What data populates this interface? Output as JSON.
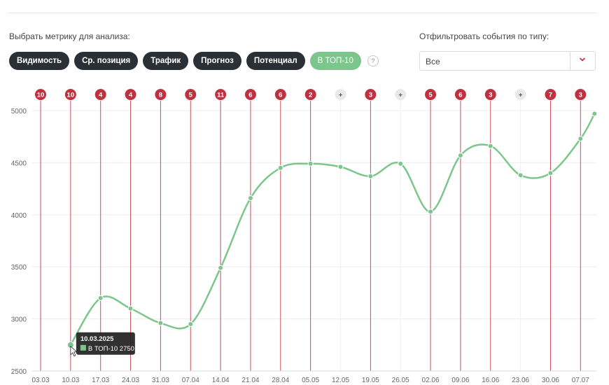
{
  "metrics": {
    "label": "Выбрать метрику для анализа:",
    "items": [
      {
        "label": "Видимость",
        "active": false
      },
      {
        "label": "Ср. позиция",
        "active": false
      },
      {
        "label": "Трафик",
        "active": false
      },
      {
        "label": "Прогноз",
        "active": false
      },
      {
        "label": "Потенциал",
        "active": false
      },
      {
        "label": "В ТОП-10",
        "active": true
      }
    ],
    "help": "?"
  },
  "filter": {
    "label": "Отфильтровать события по типу:",
    "value": "Все"
  },
  "chart_data": {
    "type": "line",
    "categories": [
      "03.03",
      "10.03",
      "17.03",
      "24.03",
      "31.03",
      "07.04",
      "14.04",
      "21.04",
      "28.04",
      "05.05",
      "12.05",
      "19.05",
      "26.05",
      "02.06",
      "09.06",
      "16.06",
      "23.06",
      "30.06",
      "07.07"
    ],
    "series": [
      {
        "name": "В ТОП-10",
        "values": [
          null,
          2750,
          3200,
          3100,
          2960,
          2950,
          3490,
          4160,
          4450,
          4490,
          4460,
          4370,
          4490,
          4030,
          4570,
          4660,
          4380,
          4400,
          4730
        ],
        "color": "#7cc68d"
      }
    ],
    "extra_point": {
      "after": "07.07",
      "value": 4970
    },
    "ylim": [
      2500,
      5000
    ],
    "yticks": [
      2500,
      3000,
      3500,
      4000,
      4500,
      5000
    ],
    "grid": true,
    "events": [
      "10",
      "10",
      "4",
      "4",
      "8",
      "5",
      "11",
      "6",
      "6",
      "2",
      "+",
      "3",
      "+",
      "5",
      "6",
      "3",
      "+",
      "7",
      "3"
    ],
    "event_color": "#c0303f",
    "tooltip": {
      "date": "10.03.2025",
      "label": "В ТОП-10",
      "value": "2750"
    }
  }
}
